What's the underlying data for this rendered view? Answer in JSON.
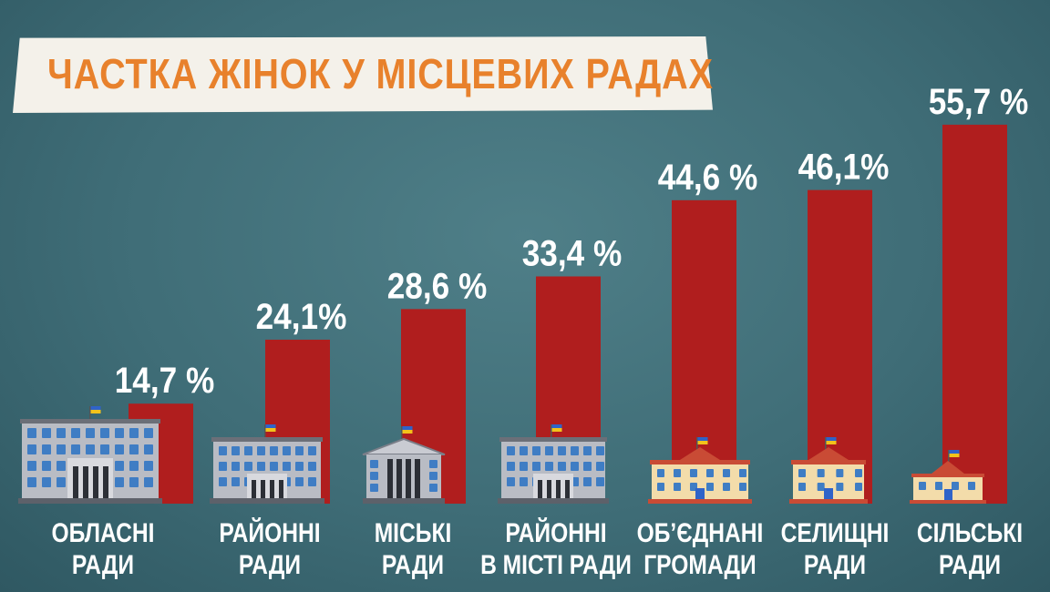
{
  "title": "ЧАСТКА ЖІНОК У МІСЦЕВИХ РАДАХ",
  "colors": {
    "bar": "#b01e1e",
    "title": "#e8812c",
    "banner": "#f4f1ea",
    "background": "#43717b"
  },
  "chart_data": {
    "type": "bar",
    "categories": [
      [
        "ОБЛАСНІ",
        "РАДИ"
      ],
      [
        "РАЙОННІ",
        "РАДИ"
      ],
      [
        "МІСЬКІ",
        "РАДИ"
      ],
      [
        "РАЙОННІ",
        "В МІСТІ РАДИ"
      ],
      [
        "ОБ’ЄДНАНІ",
        "ГРОМАДИ"
      ],
      [
        "СЕЛИЩНІ",
        "РАДИ"
      ],
      [
        "СІЛЬСЬКІ",
        "РАДИ"
      ]
    ],
    "values": [
      14.7,
      24.1,
      28.6,
      33.4,
      44.6,
      46.1,
      55.7
    ],
    "value_labels": [
      "14,7 %",
      "24,1%",
      "28,6 %",
      "33,4 %",
      "44,6 %",
      "46,1%",
      "55,7 %"
    ],
    "building_icons": [
      "large-gray-building-icon",
      "gray-building-icon",
      "classical-building-icon",
      "gray-building-icon",
      "cream-building-icon",
      "cream-building-icon",
      "small-cream-building-icon"
    ],
    "ylim": [
      0,
      60
    ]
  }
}
